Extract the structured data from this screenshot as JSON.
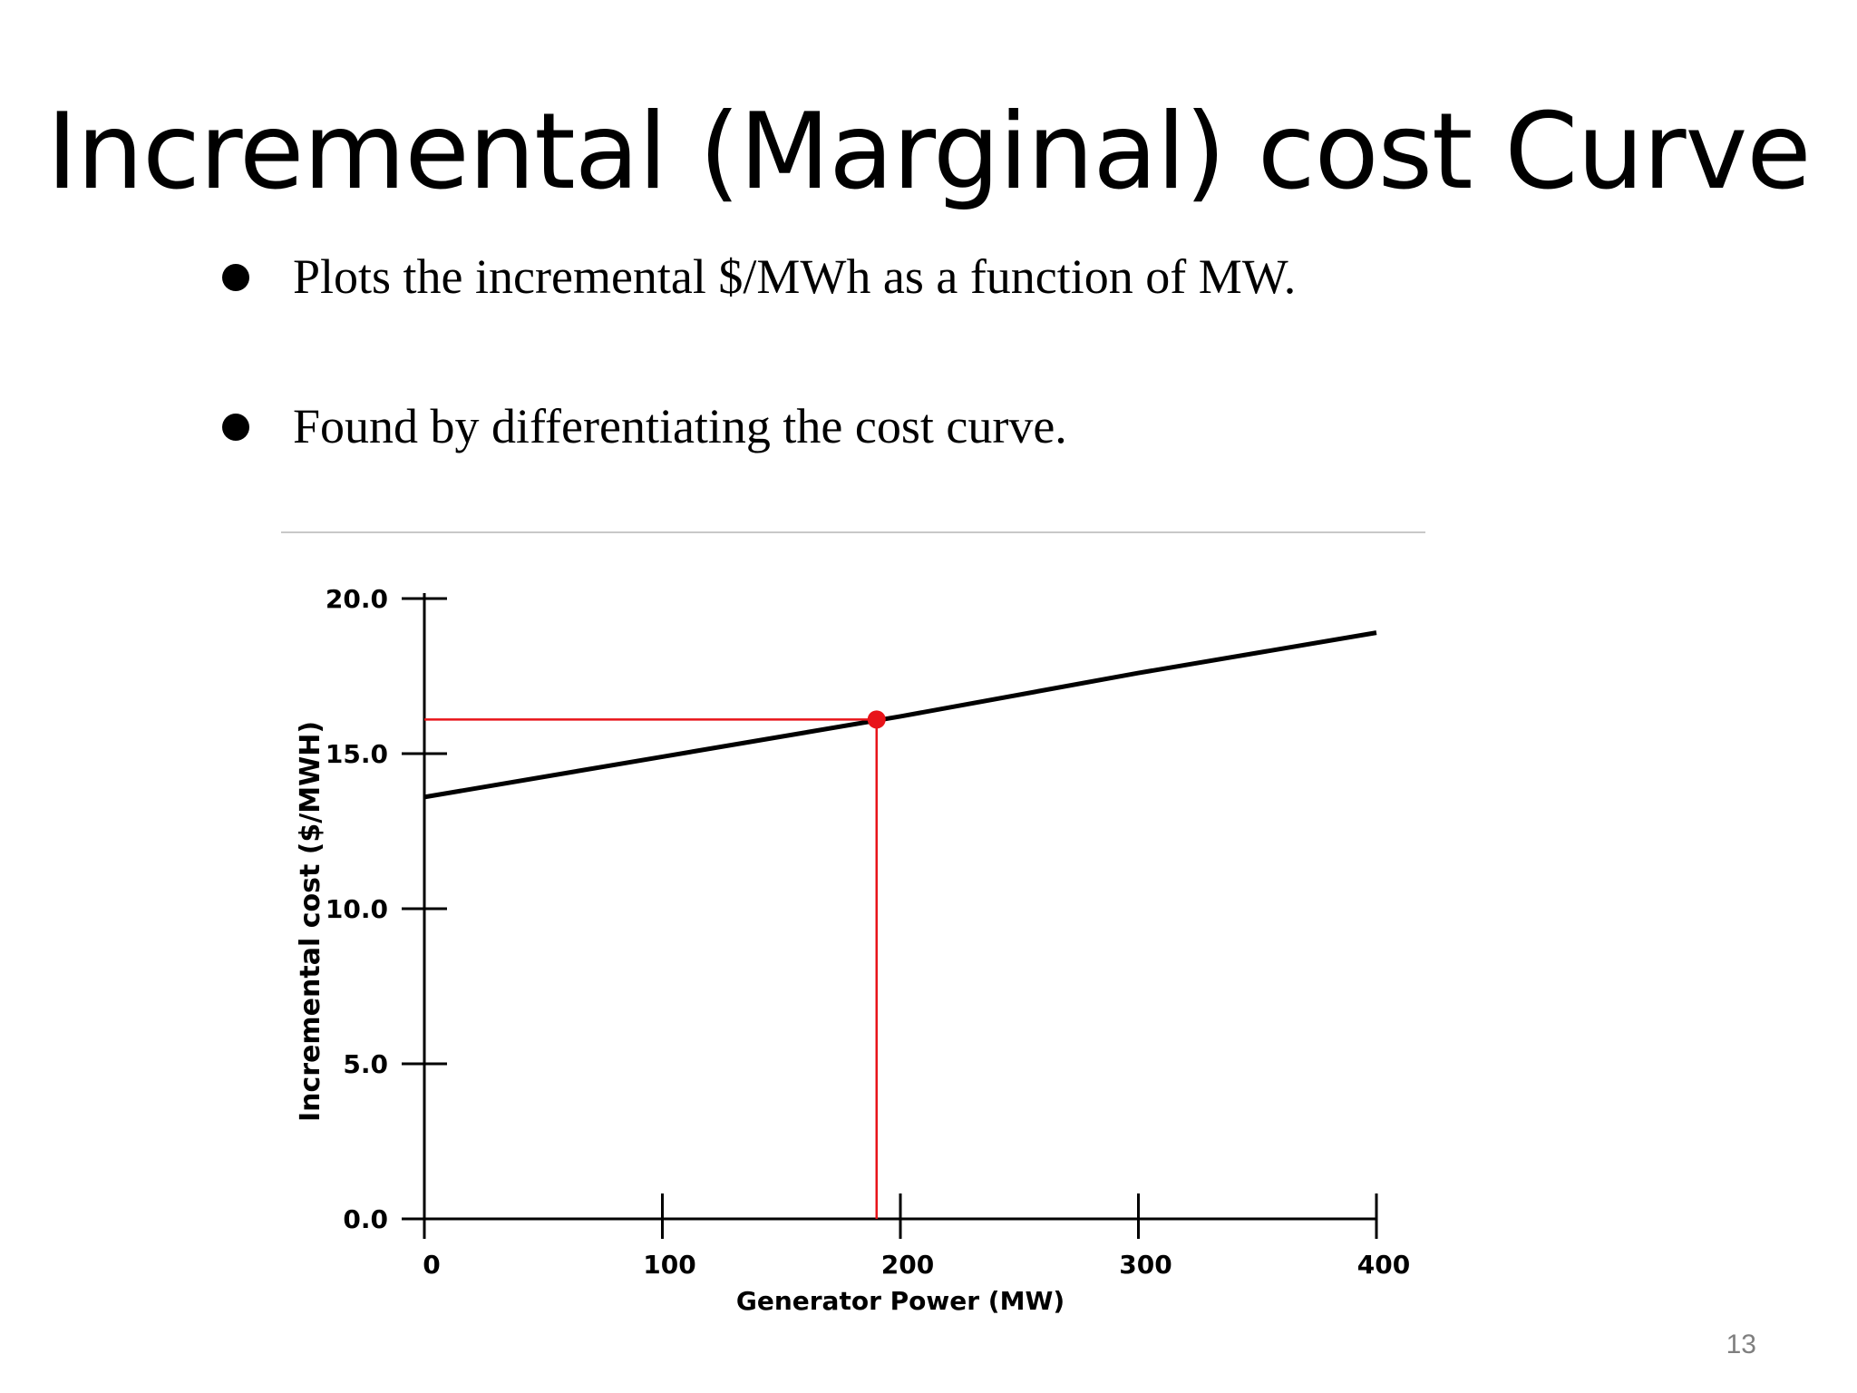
{
  "slide": {
    "title": "Incremental (Marginal) cost Curve",
    "bullets": [
      "Plots the incremental $/MWh as a function of MW.",
      "Found by differentiating the cost curve."
    ],
    "page_number": "13"
  },
  "colors": {
    "curve": "#000000",
    "highlight": "#e8141a",
    "divider": "#c8c8c8"
  },
  "chart_data": {
    "type": "line",
    "title": "",
    "xlabel": "Generator Power (MW)",
    "ylabel": "Incremental cost ($/MWH)",
    "xlim": [
      0,
      400
    ],
    "ylim": [
      0,
      20
    ],
    "x_ticks": [
      0,
      100,
      200,
      300,
      400
    ],
    "x_tick_labels": [
      "0",
      "100",
      "200",
      "300",
      "400"
    ],
    "y_ticks": [
      0,
      5,
      10,
      15,
      20
    ],
    "y_tick_labels": [
      "0.0",
      "5.0",
      "10.0",
      "15.0",
      "20.0"
    ],
    "grid": false,
    "series": [
      {
        "x": [
          0,
          100,
          200,
          300,
          400
        ],
        "y": [
          13.6,
          14.9,
          16.2,
          17.6,
          18.9
        ]
      }
    ],
    "marker": {
      "x": 190,
      "y": 16.1
    }
  }
}
